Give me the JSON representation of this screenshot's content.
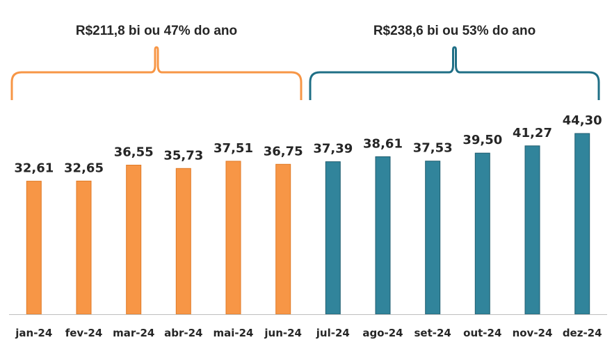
{
  "chart_data": {
    "type": "bar",
    "categories": [
      "jan-24",
      "fev-24",
      "mar-24",
      "abr-24",
      "mai-24",
      "jun-24",
      "jul-24",
      "ago-24",
      "set-24",
      "out-24",
      "nov-24",
      "dez-24"
    ],
    "values": [
      32.61,
      32.65,
      36.55,
      35.73,
      37.51,
      36.75,
      37.39,
      38.61,
      37.53,
      39.5,
      41.27,
      44.3
    ],
    "value_labels": [
      "32,61",
      "32,65",
      "36,55",
      "35,73",
      "37,51",
      "36,75",
      "37,39",
      "38,61",
      "37,53",
      "39,50",
      "41,27",
      "44,30"
    ],
    "ylim": [
      0,
      44.3
    ],
    "grid": false,
    "colors": {
      "first_half": "#F79646",
      "second_half": "#31849B",
      "first_half_border": "#E07A25",
      "second_half_border": "#205E70",
      "axis": "#BFBFBF"
    },
    "groups": [
      {
        "label": "R$211,8 bi ou 47% do ano",
        "from": 0,
        "to": 5,
        "color": "#F79646"
      },
      {
        "label": "R$238,6 bi ou 53% do ano",
        "from": 6,
        "to": 11,
        "color": "#1F6F86"
      }
    ]
  }
}
